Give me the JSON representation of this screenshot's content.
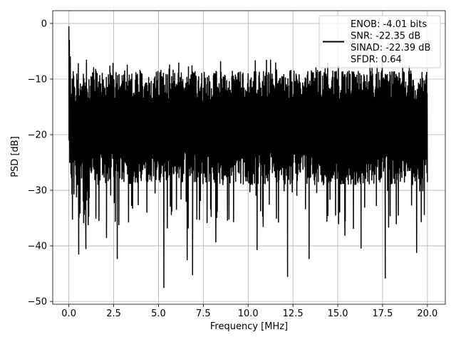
{
  "chart_data": {
    "type": "line",
    "xlabel": "Frequency [MHz]",
    "ylabel": "PSD [dB]",
    "xlim": [
      -0.9,
      21.0
    ],
    "ylim": [
      -50.5,
      2.3
    ],
    "x_ticks": [
      0.0,
      2.5,
      5.0,
      7.5,
      10.0,
      12.5,
      15.0,
      17.5,
      20.0
    ],
    "x_tick_labels": [
      "0.0",
      "2.5",
      "5.0",
      "7.5",
      "10.0",
      "12.5",
      "15.0",
      "17.5",
      "20.0"
    ],
    "y_ticks": [
      0,
      -10,
      -20,
      -30,
      -40,
      -50
    ],
    "y_tick_labels": [
      "0",
      "−10",
      "−20",
      "−30",
      "−40",
      "−50"
    ],
    "grid": true,
    "legend_position": "top-right",
    "series": [
      {
        "line_color": "#000000",
        "noise_band": {
          "upper_envelope_db": -12,
          "lower_envelope_db": -27,
          "peak_high_db": -6.5,
          "x_start": 0.0,
          "x_end": 20.0
        },
        "spike_at_dc_db": -0.5,
        "deep_nulls": [
          {
            "x": 0.55,
            "y": -41.5
          },
          {
            "x": 0.95,
            "y": -40.5
          },
          {
            "x": 2.7,
            "y": -42.3
          },
          {
            "x": 5.3,
            "y": -47.5
          },
          {
            "x": 6.6,
            "y": -42.5
          },
          {
            "x": 6.9,
            "y": -45.2
          },
          {
            "x": 12.2,
            "y": -45.5
          },
          {
            "x": 13.4,
            "y": -42.3
          },
          {
            "x": 17.65,
            "y": -45.8
          },
          {
            "x": 19.4,
            "y": -41.2
          },
          {
            "x": 16.3,
            "y": -40.4
          },
          {
            "x": 10.5,
            "y": -40.7
          },
          {
            "x": 2.1,
            "y": -38.5
          },
          {
            "x": 8.2,
            "y": -39.3
          },
          {
            "x": 15.4,
            "y": -38.1
          }
        ]
      }
    ],
    "legend": {
      "lines": [
        "ENOB: -4.01 bits",
        "SNR: -22.35 dB",
        "SINAD: -22.39 dB",
        "SFDR: 0.64"
      ]
    }
  }
}
